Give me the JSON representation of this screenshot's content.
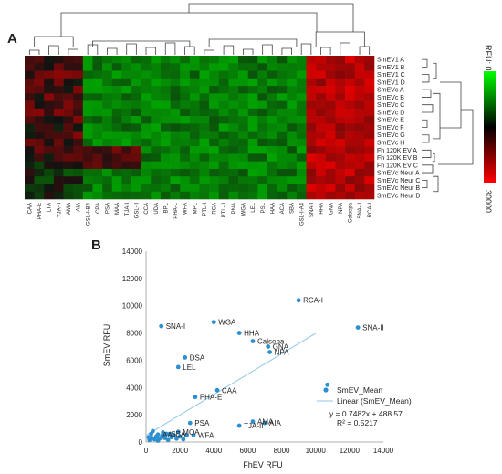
{
  "panel_a": {
    "label": "A",
    "legend_top": "RFU: 0",
    "legend_bottom": "30000",
    "rows": [
      "SmEV1 A",
      "SmEV1 B",
      "SmEV1 C",
      "SmEV1 D",
      "SmEVc A",
      "SmEVc B",
      "SmEVc C",
      "SmEVc D",
      "SmEVc E",
      "SmEVc F",
      "SmEVc G",
      "SmEVc H",
      "Fh 120K EV A",
      "Fh 120K EV B",
      "Fh 120K EV C",
      "SmEVc Neur A",
      "SmEVc Neur C",
      "SmEVc Neur B",
      "SmEVc Neur D"
    ],
    "columns": [
      "CAA",
      "PHA-E",
      "LTA",
      "TJA-II",
      "AMA",
      "AIA",
      "GSL-I-B4",
      "CPA",
      "PSA",
      "MAA",
      "TJA-I",
      "GSL-II",
      "CCA",
      "UDA",
      "BPL",
      "PHA-L",
      "WFA",
      "MPL",
      "PTL-I",
      "RCA",
      "PTL-II",
      "PNA",
      "WGA",
      "LEL",
      "PSL",
      "HAA",
      "ACA",
      "SBA",
      "GSL-I-A4",
      "SNA-I",
      "HHA",
      "GNA",
      "NPA",
      "Calsepa",
      "SNA-II",
      "RCA-I"
    ],
    "colors": {
      "low": "#00b300",
      "mid": "#111111",
      "high": "#e00000",
      "legend_low": "#00ff00",
      "legend_high": "#ff0000"
    }
  },
  "chart_data": {
    "type": "scatter",
    "panel_label": "B",
    "xlabel": "FhEV RFU",
    "ylabel": "SmEV RFU",
    "xlim": [
      0,
      14000
    ],
    "ylim": [
      0,
      14000
    ],
    "xticks": [
      "0",
      "2000",
      "4000",
      "6000",
      "8000",
      "10000",
      "12000",
      "14000"
    ],
    "yticks": [
      "0",
      "2000",
      "4000",
      "6000",
      "8000",
      "10000",
      "12000",
      "14000"
    ],
    "series_name": "SmEV_Mean",
    "trend_name": "Linear (SmEV_Mean)",
    "equation": "y = 0.7482x + 488.57",
    "r_squared": "R² = 0.5217",
    "trend": {
      "slope": 0.7482,
      "intercept": 488.57
    },
    "colors": {
      "points": "#2e8fd0",
      "trend": "#8ec6ea"
    },
    "labeled_points": [
      {
        "label": "RCA-I",
        "x": 9000,
        "y": 10400
      },
      {
        "label": "SNA-II",
        "x": 12500,
        "y": 8400
      },
      {
        "label": "SNA-I",
        "x": 900,
        "y": 8500
      },
      {
        "label": "WGA",
        "x": 4000,
        "y": 8800
      },
      {
        "label": "HHA",
        "x": 5500,
        "y": 8000
      },
      {
        "label": "Calsepa",
        "x": 6300,
        "y": 7400
      },
      {
        "label": "GNA",
        "x": 7200,
        "y": 7000
      },
      {
        "label": "NPA",
        "x": 7300,
        "y": 6600
      },
      {
        "label": "DSA",
        "x": 2300,
        "y": 6200
      },
      {
        "label": "LEL",
        "x": 1900,
        "y": 5500
      },
      {
        "label": "CAA",
        "x": 4200,
        "y": 3800
      },
      {
        "label": "PHA-E",
        "x": 2900,
        "y": 3300
      },
      {
        "label": "PSA",
        "x": 2600,
        "y": 1400
      },
      {
        "label": "AMA",
        "x": 6300,
        "y": 1500
      },
      {
        "label": "AIA",
        "x": 7000,
        "y": 1400
      },
      {
        "label": "TJA-II",
        "x": 5500,
        "y": 1200
      },
      {
        "label": "MOA",
        "x": 1900,
        "y": 750
      },
      {
        "label": "WFA",
        "x": 2800,
        "y": 500
      },
      {
        "label": "AAL",
        "x": 700,
        "y": 550
      },
      {
        "label": "SBA",
        "x": 1200,
        "y": 600
      }
    ],
    "unlabeled_points": [
      {
        "x": 10700,
        "y": 4200
      },
      {
        "x": 200,
        "y": 150
      },
      {
        "x": 350,
        "y": 300
      },
      {
        "x": 500,
        "y": 200
      },
      {
        "x": 600,
        "y": 400
      },
      {
        "x": 800,
        "y": 250
      },
      {
        "x": 950,
        "y": 450
      },
      {
        "x": 1100,
        "y": 300
      },
      {
        "x": 1300,
        "y": 150
      },
      {
        "x": 1500,
        "y": 350
      },
      {
        "x": 1650,
        "y": 500
      },
      {
        "x": 1800,
        "y": 250
      },
      {
        "x": 2000,
        "y": 400
      },
      {
        "x": 2200,
        "y": 200
      },
      {
        "x": 2400,
        "y": 500
      },
      {
        "x": 300,
        "y": 600
      },
      {
        "x": 700,
        "y": 100
      },
      {
        "x": 1000,
        "y": 700
      },
      {
        "x": 1400,
        "y": 600
      },
      {
        "x": 400,
        "y": 800
      },
      {
        "x": 150,
        "y": 350
      }
    ]
  }
}
